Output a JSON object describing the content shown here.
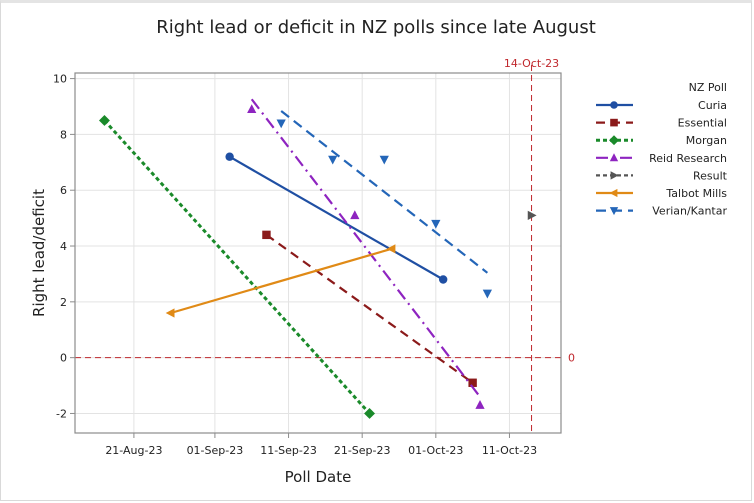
{
  "chart_data": {
    "type": "line",
    "title": "Right lead or deficit in NZ polls since late August",
    "xlabel": "Poll Date",
    "ylabel": "Right lead/deficit",
    "x_type": "date",
    "xlim": [
      "2023-08-13",
      "2023-10-18"
    ],
    "ylim": [
      -2.7,
      10.2
    ],
    "x_ticks": [
      {
        "date": "2023-08-21",
        "label": "21-Aug-23"
      },
      {
        "date": "2023-09-01",
        "label": "01-Sep-23"
      },
      {
        "date": "2023-09-11",
        "label": "11-Sep-23"
      },
      {
        "date": "2023-09-21",
        "label": "21-Sep-23"
      },
      {
        "date": "2023-10-01",
        "label": "01-Oct-23"
      },
      {
        "date": "2023-10-11",
        "label": "11-Oct-23"
      }
    ],
    "y_ticks": [
      -2,
      0,
      2,
      4,
      6,
      8,
      10
    ],
    "grid": true,
    "reference_lines": [
      {
        "axis": "y",
        "value": 0,
        "label": "0",
        "color": "#c0282d"
      },
      {
        "axis": "x",
        "value": "2023-10-14",
        "label": "14-Oct-23",
        "color": "#c0282d"
      }
    ],
    "legend": {
      "title": "NZ Poll",
      "position": "right"
    },
    "series": [
      {
        "name": "Curia",
        "color": "#1f4fa3",
        "marker": "circle",
        "line": "solid",
        "x": [
          "2023-09-03",
          "2023-10-02"
        ],
        "y": [
          7.2,
          2.8
        ]
      },
      {
        "name": "Essential",
        "color": "#8b1a1a",
        "marker": "square",
        "line": "dash",
        "x": [
          "2023-09-08",
          "2023-10-06"
        ],
        "y": [
          4.4,
          -0.9
        ]
      },
      {
        "name": "Morgan",
        "color": "#1a8a2a",
        "marker": "diamond",
        "line": "dot",
        "x": [
          "2023-08-17",
          "2023-09-22"
        ],
        "y": [
          8.5,
          -2.0
        ]
      },
      {
        "name": "Reid Research",
        "color": "#8e24c0",
        "marker": "triangle-up",
        "line": "dashdot",
        "x": [
          "2023-09-06",
          "2023-09-20",
          "2023-10-07"
        ],
        "y": [
          8.9,
          5.1,
          -1.7
        ]
      },
      {
        "name": "Result",
        "color": "#555555",
        "marker": "triangle-right",
        "line": "shortdash",
        "x": [
          "2023-10-14"
        ],
        "y": [
          5.1
        ]
      },
      {
        "name": "Talbot Mills",
        "color": "#e08a16",
        "marker": "triangle-left",
        "line": "solid",
        "x": [
          "2023-08-26",
          "2023-09-25"
        ],
        "y": [
          1.6,
          3.9
        ]
      },
      {
        "name": "Verian/Kantar",
        "color": "#2466b8",
        "marker": "triangle-down",
        "line": "longdash",
        "x": [
          "2023-09-10",
          "2023-09-17",
          "2023-09-24",
          "2023-10-01",
          "2023-10-08"
        ],
        "y": [
          8.4,
          7.1,
          7.1,
          4.8,
          2.3
        ]
      }
    ]
  }
}
